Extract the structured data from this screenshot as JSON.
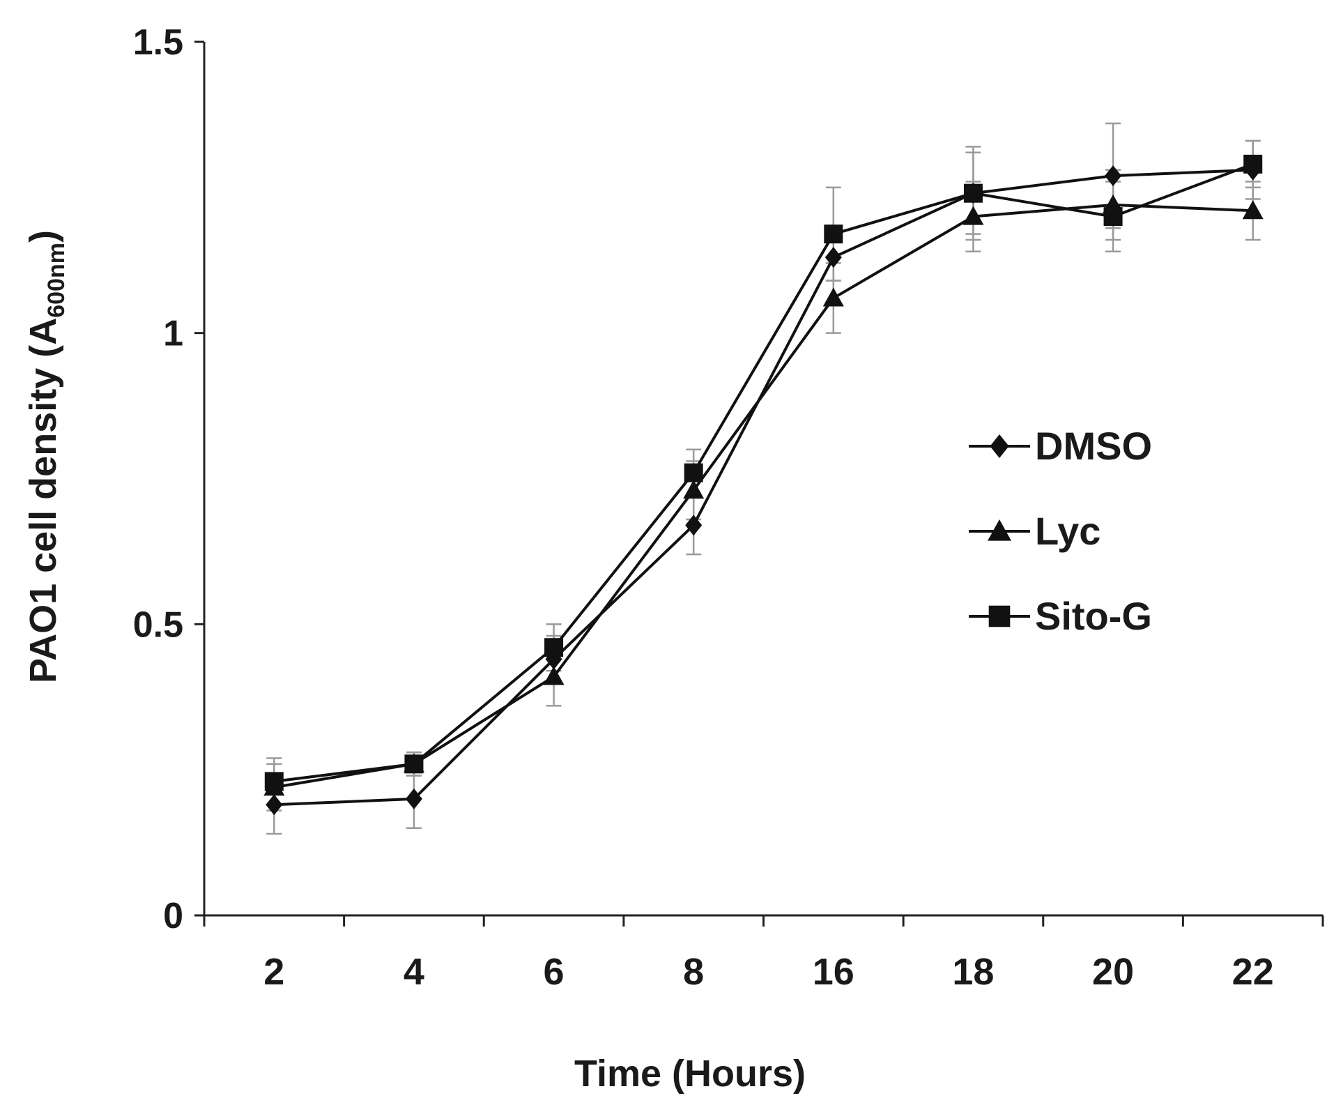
{
  "chart_data": {
    "type": "line",
    "title": "",
    "xlabel": "Time (Hours)",
    "ylabel_main": "PAO1 cell density (A",
    "ylabel_sub": "600nm",
    "ylabel_close": ")",
    "categories": [
      "2",
      "4",
      "6",
      "8",
      "16",
      "18",
      "20",
      "22"
    ],
    "ylim": [
      0,
      1.5
    ],
    "yticks": [
      0,
      0.5,
      1,
      1.5
    ],
    "ytick_labels": [
      "0",
      "0.5",
      "1",
      "1.5"
    ],
    "grid": false,
    "legend_position": "center-right",
    "series": [
      {
        "name": "DMSO",
        "marker": "diamond",
        "values": [
          0.19,
          0.2,
          0.44,
          0.67,
          1.13,
          1.24,
          1.27,
          1.28
        ],
        "errors": [
          0.05,
          0.05,
          0.04,
          0.05,
          0.04,
          0.07,
          0.09,
          0.05
        ]
      },
      {
        "name": "Lyc",
        "marker": "triangle",
        "values": [
          0.22,
          0.26,
          0.41,
          0.73,
          1.06,
          1.2,
          1.22,
          1.21
        ],
        "errors": [
          0.04,
          0.02,
          0.05,
          0.05,
          0.06,
          0.06,
          0.06,
          0.05
        ]
      },
      {
        "name": "Sito-G",
        "marker": "square",
        "values": [
          0.23,
          0.26,
          0.46,
          0.76,
          1.17,
          1.24,
          1.2,
          1.29
        ],
        "errors": [
          0.04,
          0.02,
          0.04,
          0.04,
          0.08,
          0.08,
          0.06,
          0.04
        ]
      }
    ],
    "colors": {
      "line": "#111111",
      "marker": "#111111",
      "error": "#9a9a9a",
      "axis": "#222222"
    }
  }
}
